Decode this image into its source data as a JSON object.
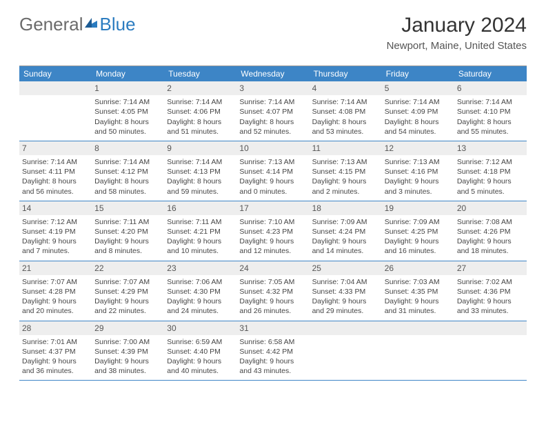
{
  "brand": {
    "part1": "General",
    "part2": "Blue"
  },
  "title": "January 2024",
  "location": "Newport, Maine, United States",
  "colors": {
    "header_bg": "#3d85c6",
    "header_fg": "#ffffff",
    "rule": "#3d85c6",
    "daynum_bg": "#eeeeee",
    "text": "#454545",
    "brand_gray": "#6b6b6b",
    "brand_blue": "#2b7cc0"
  },
  "typography": {
    "base_pt": 10.5,
    "title_pt": 30,
    "dow_pt": 12
  },
  "days_of_week": [
    "Sunday",
    "Monday",
    "Tuesday",
    "Wednesday",
    "Thursday",
    "Friday",
    "Saturday"
  ],
  "weeks": [
    [
      null,
      {
        "n": "1",
        "sr": "Sunrise: 7:14 AM",
        "ss": "Sunset: 4:05 PM",
        "dl1": "Daylight: 8 hours",
        "dl2": "and 50 minutes."
      },
      {
        "n": "2",
        "sr": "Sunrise: 7:14 AM",
        "ss": "Sunset: 4:06 PM",
        "dl1": "Daylight: 8 hours",
        "dl2": "and 51 minutes."
      },
      {
        "n": "3",
        "sr": "Sunrise: 7:14 AM",
        "ss": "Sunset: 4:07 PM",
        "dl1": "Daylight: 8 hours",
        "dl2": "and 52 minutes."
      },
      {
        "n": "4",
        "sr": "Sunrise: 7:14 AM",
        "ss": "Sunset: 4:08 PM",
        "dl1": "Daylight: 8 hours",
        "dl2": "and 53 minutes."
      },
      {
        "n": "5",
        "sr": "Sunrise: 7:14 AM",
        "ss": "Sunset: 4:09 PM",
        "dl1": "Daylight: 8 hours",
        "dl2": "and 54 minutes."
      },
      {
        "n": "6",
        "sr": "Sunrise: 7:14 AM",
        "ss": "Sunset: 4:10 PM",
        "dl1": "Daylight: 8 hours",
        "dl2": "and 55 minutes."
      }
    ],
    [
      {
        "n": "7",
        "sr": "Sunrise: 7:14 AM",
        "ss": "Sunset: 4:11 PM",
        "dl1": "Daylight: 8 hours",
        "dl2": "and 56 minutes."
      },
      {
        "n": "8",
        "sr": "Sunrise: 7:14 AM",
        "ss": "Sunset: 4:12 PM",
        "dl1": "Daylight: 8 hours",
        "dl2": "and 58 minutes."
      },
      {
        "n": "9",
        "sr": "Sunrise: 7:14 AM",
        "ss": "Sunset: 4:13 PM",
        "dl1": "Daylight: 8 hours",
        "dl2": "and 59 minutes."
      },
      {
        "n": "10",
        "sr": "Sunrise: 7:13 AM",
        "ss": "Sunset: 4:14 PM",
        "dl1": "Daylight: 9 hours",
        "dl2": "and 0 minutes."
      },
      {
        "n": "11",
        "sr": "Sunrise: 7:13 AM",
        "ss": "Sunset: 4:15 PM",
        "dl1": "Daylight: 9 hours",
        "dl2": "and 2 minutes."
      },
      {
        "n": "12",
        "sr": "Sunrise: 7:13 AM",
        "ss": "Sunset: 4:16 PM",
        "dl1": "Daylight: 9 hours",
        "dl2": "and 3 minutes."
      },
      {
        "n": "13",
        "sr": "Sunrise: 7:12 AM",
        "ss": "Sunset: 4:18 PM",
        "dl1": "Daylight: 9 hours",
        "dl2": "and 5 minutes."
      }
    ],
    [
      {
        "n": "14",
        "sr": "Sunrise: 7:12 AM",
        "ss": "Sunset: 4:19 PM",
        "dl1": "Daylight: 9 hours",
        "dl2": "and 7 minutes."
      },
      {
        "n": "15",
        "sr": "Sunrise: 7:11 AM",
        "ss": "Sunset: 4:20 PM",
        "dl1": "Daylight: 9 hours",
        "dl2": "and 8 minutes."
      },
      {
        "n": "16",
        "sr": "Sunrise: 7:11 AM",
        "ss": "Sunset: 4:21 PM",
        "dl1": "Daylight: 9 hours",
        "dl2": "and 10 minutes."
      },
      {
        "n": "17",
        "sr": "Sunrise: 7:10 AM",
        "ss": "Sunset: 4:23 PM",
        "dl1": "Daylight: 9 hours",
        "dl2": "and 12 minutes."
      },
      {
        "n": "18",
        "sr": "Sunrise: 7:09 AM",
        "ss": "Sunset: 4:24 PM",
        "dl1": "Daylight: 9 hours",
        "dl2": "and 14 minutes."
      },
      {
        "n": "19",
        "sr": "Sunrise: 7:09 AM",
        "ss": "Sunset: 4:25 PM",
        "dl1": "Daylight: 9 hours",
        "dl2": "and 16 minutes."
      },
      {
        "n": "20",
        "sr": "Sunrise: 7:08 AM",
        "ss": "Sunset: 4:26 PM",
        "dl1": "Daylight: 9 hours",
        "dl2": "and 18 minutes."
      }
    ],
    [
      {
        "n": "21",
        "sr": "Sunrise: 7:07 AM",
        "ss": "Sunset: 4:28 PM",
        "dl1": "Daylight: 9 hours",
        "dl2": "and 20 minutes."
      },
      {
        "n": "22",
        "sr": "Sunrise: 7:07 AM",
        "ss": "Sunset: 4:29 PM",
        "dl1": "Daylight: 9 hours",
        "dl2": "and 22 minutes."
      },
      {
        "n": "23",
        "sr": "Sunrise: 7:06 AM",
        "ss": "Sunset: 4:30 PM",
        "dl1": "Daylight: 9 hours",
        "dl2": "and 24 minutes."
      },
      {
        "n": "24",
        "sr": "Sunrise: 7:05 AM",
        "ss": "Sunset: 4:32 PM",
        "dl1": "Daylight: 9 hours",
        "dl2": "and 26 minutes."
      },
      {
        "n": "25",
        "sr": "Sunrise: 7:04 AM",
        "ss": "Sunset: 4:33 PM",
        "dl1": "Daylight: 9 hours",
        "dl2": "and 29 minutes."
      },
      {
        "n": "26",
        "sr": "Sunrise: 7:03 AM",
        "ss": "Sunset: 4:35 PM",
        "dl1": "Daylight: 9 hours",
        "dl2": "and 31 minutes."
      },
      {
        "n": "27",
        "sr": "Sunrise: 7:02 AM",
        "ss": "Sunset: 4:36 PM",
        "dl1": "Daylight: 9 hours",
        "dl2": "and 33 minutes."
      }
    ],
    [
      {
        "n": "28",
        "sr": "Sunrise: 7:01 AM",
        "ss": "Sunset: 4:37 PM",
        "dl1": "Daylight: 9 hours",
        "dl2": "and 36 minutes."
      },
      {
        "n": "29",
        "sr": "Sunrise: 7:00 AM",
        "ss": "Sunset: 4:39 PM",
        "dl1": "Daylight: 9 hours",
        "dl2": "and 38 minutes."
      },
      {
        "n": "30",
        "sr": "Sunrise: 6:59 AM",
        "ss": "Sunset: 4:40 PM",
        "dl1": "Daylight: 9 hours",
        "dl2": "and 40 minutes."
      },
      {
        "n": "31",
        "sr": "Sunrise: 6:58 AM",
        "ss": "Sunset: 4:42 PM",
        "dl1": "Daylight: 9 hours",
        "dl2": "and 43 minutes."
      },
      null,
      null,
      null
    ]
  ]
}
